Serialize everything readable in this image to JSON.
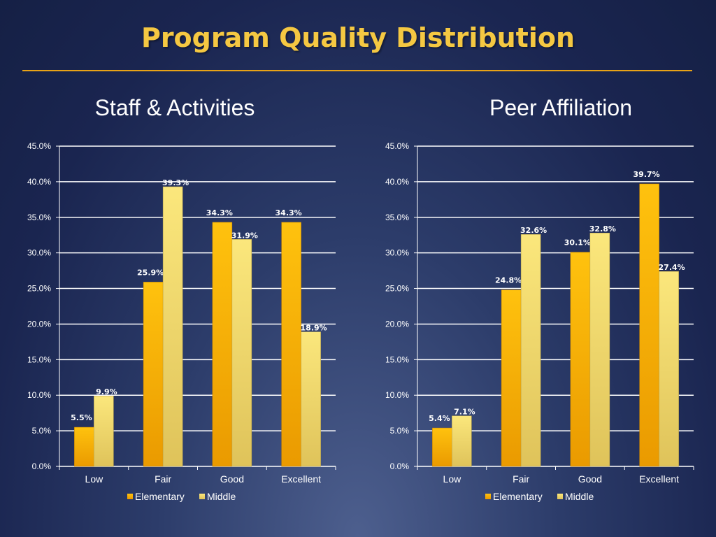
{
  "title": "Program Quality Distribution",
  "colors": {
    "elementary": "#f5a800",
    "middle": "#f2dc6e",
    "title": "#f5c842",
    "rule": "#e8a317"
  },
  "chart_data": [
    {
      "type": "bar",
      "title": "Staff & Activities",
      "categories": [
        "Low",
        "Fair",
        "Good",
        "Excellent"
      ],
      "series": [
        {
          "name": "Elementary",
          "values": [
            5.5,
            25.9,
            34.3,
            34.3
          ]
        },
        {
          "name": "Middle",
          "values": [
            9.9,
            39.3,
            31.9,
            18.9
          ]
        }
      ],
      "data_labels": [
        [
          "5.5%",
          "25.9%",
          "34.3%",
          "34.3%"
        ],
        [
          "9.9%",
          "39.3%",
          "31.9%",
          "18.9%"
        ]
      ],
      "yticks": [
        "0.0%",
        "5.0%",
        "10.0%",
        "15.0%",
        "20.0%",
        "25.0%",
        "30.0%",
        "35.0%",
        "40.0%",
        "45.0%"
      ],
      "ylim": [
        0,
        45
      ],
      "grid": true,
      "legend": "bottom"
    },
    {
      "type": "bar",
      "title": "Peer Affiliation",
      "categories": [
        "Low",
        "Fair",
        "Good",
        "Excellent"
      ],
      "series": [
        {
          "name": "Elementary",
          "values": [
            5.4,
            24.8,
            30.1,
            39.7
          ]
        },
        {
          "name": "Middle",
          "values": [
            7.1,
            32.6,
            32.8,
            27.4
          ]
        }
      ],
      "data_labels": [
        [
          "5.4%",
          "24.8%",
          "30.1%",
          "39.7%"
        ],
        [
          "7.1%",
          "32.6%",
          "32.8%",
          "27.4%"
        ]
      ],
      "yticks": [
        "0.0%",
        "5.0%",
        "10.0%",
        "15.0%",
        "20.0%",
        "25.0%",
        "30.0%",
        "35.0%",
        "40.0%",
        "45.0%"
      ],
      "ylim": [
        0,
        45
      ],
      "grid": true,
      "legend": "bottom"
    }
  ]
}
